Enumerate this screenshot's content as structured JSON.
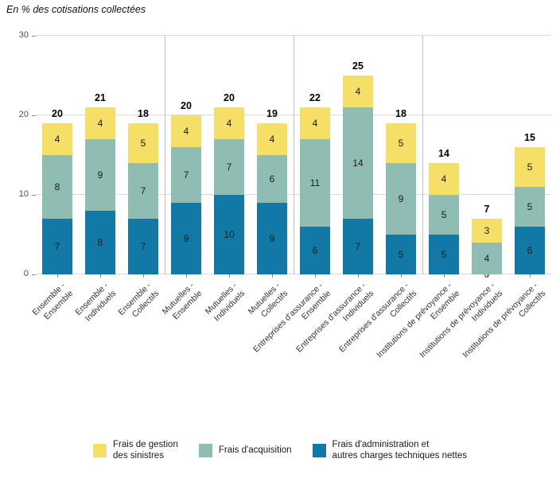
{
  "chart_data": {
    "type": "stacked-bar",
    "title": "En % des cotisations collectées",
    "xlabel": "",
    "ylabel": "",
    "ylim": [
      0,
      30
    ],
    "yticks": [
      0,
      10,
      20,
      30
    ],
    "grid": "horizontal",
    "legend_position": "bottom",
    "group_separators_after_bar": [
      3,
      6,
      9
    ],
    "categories": [
      "Ensemble -\nEnsemble",
      "Ensemble -\nIndividuels",
      "Ensemble -\nCollectifs",
      "Mutuelles -\nEnsemble",
      "Mutuelles -\nIndividuels",
      "Mutuelles -\nCollectifs",
      "Entreprises d'assurance -\nEnsemble",
      "Entreprises d'assurance -\nIndividuels",
      "Entreprises d'assurance -\nCollectifs",
      "Institutions de prévoyance -\nEnsemble",
      "Institutions de prévoyance -\nIndividuels",
      "Institutions de prévoyance -\nCollectifs"
    ],
    "totals": [
      20,
      21,
      18,
      20,
      20,
      19,
      22,
      25,
      18,
      14,
      7,
      15
    ],
    "series": [
      {
        "name": "Frais d'administration et autres charges techniques nettes",
        "color": "#1279A7",
        "values": [
          7,
          8,
          7,
          9,
          10,
          9,
          6,
          7,
          5,
          5,
          0,
          6
        ]
      },
      {
        "name": "Frais d'acquisition",
        "color": "#8FBDB4",
        "values": [
          8,
          9,
          7,
          7,
          7,
          6,
          11,
          14,
          9,
          5,
          4,
          5
        ]
      },
      {
        "name": "Frais de gestion des sinistres",
        "color": "#F6DF66",
        "values": [
          4,
          4,
          5,
          4,
          4,
          4,
          4,
          4,
          5,
          4,
          3,
          5
        ]
      }
    ],
    "legend": [
      {
        "label": "Frais de gestion\ndes sinistres",
        "color": "#F6DF66"
      },
      {
        "label": "Frais d'acquisition",
        "color": "#8FBDB4"
      },
      {
        "label": "Frais d'administration et\nautres charges techniques nettes",
        "color": "#1279A7"
      }
    ]
  }
}
